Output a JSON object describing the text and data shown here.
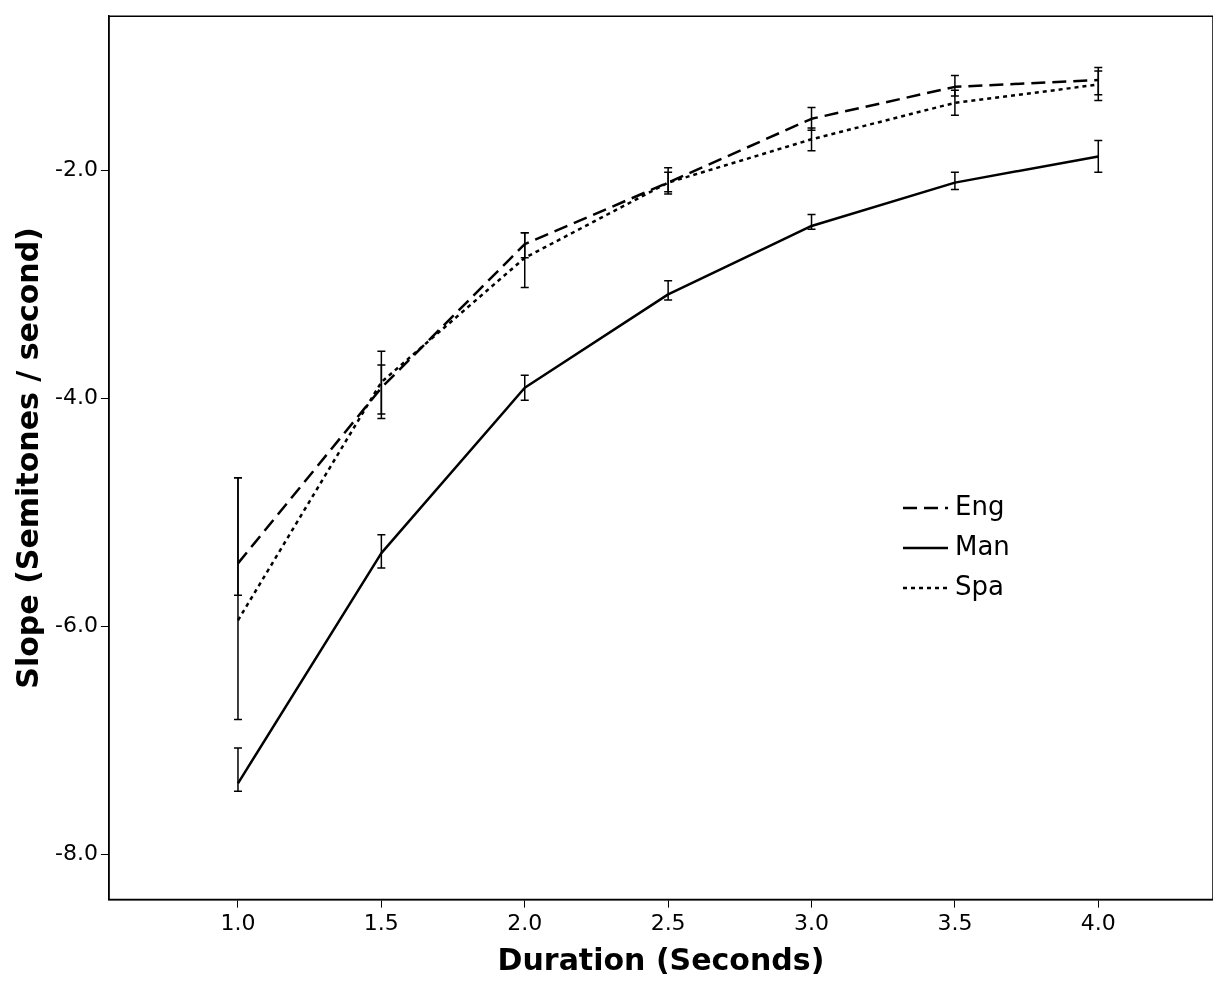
{
  "chart_data": {
    "type": "line",
    "xlabel": "Duration (Seconds)",
    "ylabel": "Slope (Semitones / second)",
    "x": [
      1.0,
      1.5,
      2.0,
      2.5,
      3.0,
      3.5,
      4.0
    ],
    "series": [
      {
        "name": "Eng",
        "color": "#000000",
        "line_style": "dashed",
        "values": [
          -5.45,
          -3.91,
          -2.65,
          -2.11,
          -1.55,
          -1.27,
          -1.21
        ],
        "errors": [
          [
            -5.73,
            -4.7
          ],
          [
            -4.14,
            -3.71
          ],
          [
            -2.77,
            -2.55
          ],
          [
            -2.19,
            -2.02
          ],
          [
            -1.65,
            -1.45
          ],
          [
            -1.35,
            -1.17
          ],
          [
            -1.34,
            -1.1
          ]
        ]
      },
      {
        "name": "Man",
        "color": "#000000",
        "line_style": "solid",
        "values": [
          -7.38,
          -5.36,
          -3.91,
          -3.09,
          -2.49,
          -2.11,
          -1.88
        ],
        "errors": [
          [
            -7.45,
            -7.07
          ],
          [
            -5.49,
            -5.2
          ],
          [
            -4.02,
            -3.8
          ],
          [
            -3.14,
            -2.97
          ],
          [
            -2.52,
            -2.39
          ],
          [
            -2.17,
            -2.02
          ],
          [
            -2.02,
            -1.74
          ]
        ]
      },
      {
        "name": "Spa",
        "color": "#000000",
        "line_style": "dotted",
        "values": [
          -5.95,
          -3.86,
          -2.77,
          -2.11,
          -1.73,
          -1.41,
          -1.25
        ],
        "errors": [
          [
            -6.82,
            -4.7
          ],
          [
            -4.18,
            -3.59
          ],
          [
            -3.03,
            -2.55
          ],
          [
            -2.21,
            -1.98
          ],
          [
            -1.83,
            -1.63
          ],
          [
            -1.52,
            -1.3
          ],
          [
            -1.39,
            -1.13
          ]
        ]
      }
    ],
    "xlim": [
      0.55,
      4.4
    ],
    "ylim": [
      -8.4,
      -0.65
    ],
    "xticks": [
      {
        "value": 1,
        "label": "1.0"
      },
      {
        "value": 1.5,
        "label": "1.5"
      },
      {
        "value": 2,
        "label": "2.0"
      },
      {
        "value": 2.5,
        "label": "2.5"
      },
      {
        "value": 3,
        "label": "3.0"
      },
      {
        "value": 3.5,
        "label": "3.5"
      },
      {
        "value": 4,
        "label": "4.0"
      }
    ],
    "yticks": [
      {
        "value": -8,
        "label": "-8.0"
      },
      {
        "value": -6,
        "label": "-6.0"
      },
      {
        "value": -4,
        "label": "-4.0"
      },
      {
        "value": -2,
        "label": "-2.0"
      }
    ],
    "grid": false,
    "legend": "right",
    "marker": "none"
  }
}
